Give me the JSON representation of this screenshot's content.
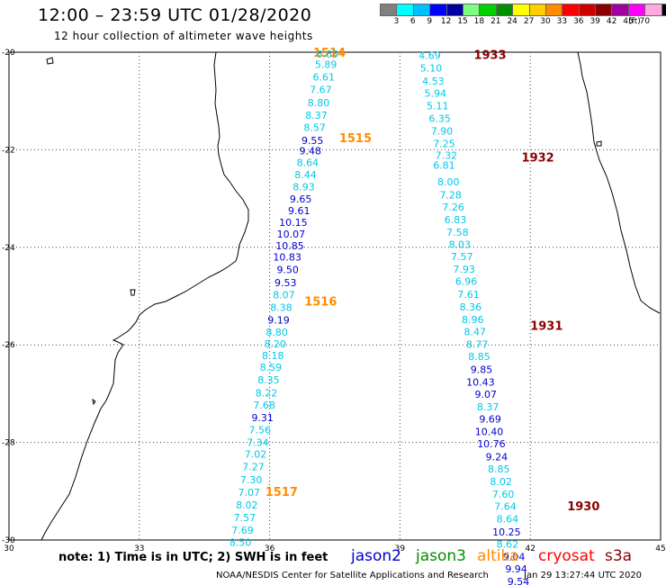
{
  "header": {
    "title": "12:00 – 23:59 UTC 01/28/2020",
    "subtitle": "12 hour collection of altimeter wave heights"
  },
  "legend": {
    "colors": [
      "#808080",
      "#00ffff",
      "#00bfff",
      "#0000ff",
      "#00009f",
      "#7fff7f",
      "#00cf00",
      "#009000",
      "#ffff00",
      "#ffcf00",
      "#ff8c00",
      "#ff0000",
      "#cf0000",
      "#8b0000",
      "#9f009f",
      "#ff00ff",
      "#ffaadd",
      "#000000"
    ],
    "ticks": [
      "3",
      "6",
      "9",
      "12",
      "15",
      "18",
      "21",
      "24",
      "27",
      "30",
      "33",
      "36",
      "39",
      "42",
      "45",
      "70"
    ],
    "unit": "(ft)"
  },
  "map": {
    "lon_ticks": [
      "30",
      "33",
      "36",
      "39",
      "42",
      "45"
    ],
    "lat_ticks": [
      "-20",
      "-22",
      "-24",
      "-26",
      "-28",
      "-30"
    ],
    "colors": {
      "cyan": "#00c8e6",
      "blue": "#0000cd",
      "orange": "#ff8c00",
      "darkred": "#8b0000",
      "coast": "#000000",
      "grid": "#444444"
    },
    "pass_labels": [
      {
        "text": "1514",
        "lon": 37.0,
        "lat": -20.0,
        "color": "orange"
      },
      {
        "text": "1515",
        "lon": 37.6,
        "lat": -21.75,
        "color": "orange"
      },
      {
        "text": "1516",
        "lon": 36.8,
        "lat": -25.1,
        "color": "orange"
      },
      {
        "text": "1517",
        "lon": 35.9,
        "lat": -29.0,
        "color": "orange"
      },
      {
        "text": "1933",
        "lon": 40.7,
        "lat": -20.05,
        "color": "darkred"
      },
      {
        "text": "1932",
        "lon": 41.8,
        "lat": -22.15,
        "color": "darkred"
      },
      {
        "text": "1931",
        "lon": 42.0,
        "lat": -25.6,
        "color": "darkred"
      },
      {
        "text": "1930",
        "lon": 42.85,
        "lat": -29.3,
        "color": "darkred"
      }
    ],
    "track_west": [
      {
        "v": "6.65",
        "lon": 37.58,
        "lat": -20.04,
        "c": "cyan"
      },
      {
        "v": "5.89",
        "lon": 37.55,
        "lat": -20.25,
        "c": "cyan"
      },
      {
        "v": "6.61",
        "lon": 37.5,
        "lat": -20.51,
        "c": "cyan"
      },
      {
        "v": "7.67",
        "lon": 37.43,
        "lat": -20.77,
        "c": "cyan"
      },
      {
        "v": "8.80",
        "lon": 37.38,
        "lat": -21.03,
        "c": "cyan"
      },
      {
        "v": "8.37",
        "lon": 37.33,
        "lat": -21.29,
        "c": "cyan"
      },
      {
        "v": "8.57",
        "lon": 37.29,
        "lat": -21.54,
        "c": "cyan"
      },
      {
        "v": "9.55",
        "lon": 37.24,
        "lat": -21.81,
        "c": "blue"
      },
      {
        "v": "9.48",
        "lon": 37.19,
        "lat": -22.02,
        "c": "blue"
      },
      {
        "v": "8.64",
        "lon": 37.13,
        "lat": -22.26,
        "c": "cyan"
      },
      {
        "v": "8.44",
        "lon": 37.08,
        "lat": -22.51,
        "c": "cyan"
      },
      {
        "v": "8.93",
        "lon": 37.04,
        "lat": -22.76,
        "c": "cyan"
      },
      {
        "v": "9.65",
        "lon": 36.97,
        "lat": -23.01,
        "c": "blue"
      },
      {
        "v": "9.61",
        "lon": 36.93,
        "lat": -23.25,
        "c": "blue"
      },
      {
        "v": "10.15",
        "lon": 36.87,
        "lat": -23.49,
        "c": "blue"
      },
      {
        "v": "10.07",
        "lon": 36.82,
        "lat": -23.73,
        "c": "blue"
      },
      {
        "v": "10.85",
        "lon": 36.79,
        "lat": -23.97,
        "c": "blue"
      },
      {
        "v": "10.83",
        "lon": 36.73,
        "lat": -24.2,
        "c": "blue"
      },
      {
        "v": "9.50",
        "lon": 36.67,
        "lat": -24.46,
        "c": "blue"
      },
      {
        "v": "9.53",
        "lon": 36.62,
        "lat": -24.72,
        "c": "blue"
      },
      {
        "v": "8.07",
        "lon": 36.58,
        "lat": -24.97,
        "c": "cyan"
      },
      {
        "v": "8.38",
        "lon": 36.52,
        "lat": -25.23,
        "c": "cyan"
      },
      {
        "v": "9.19",
        "lon": 36.46,
        "lat": -25.49,
        "c": "blue"
      },
      {
        "v": "8.80",
        "lon": 36.42,
        "lat": -25.74,
        "c": "cyan"
      },
      {
        "v": "8.20",
        "lon": 36.38,
        "lat": -25.98,
        "c": "cyan"
      },
      {
        "v": "8.18",
        "lon": 36.33,
        "lat": -26.22,
        "c": "cyan"
      },
      {
        "v": "8.59",
        "lon": 36.28,
        "lat": -26.46,
        "c": "cyan"
      },
      {
        "v": "8.35",
        "lon": 36.23,
        "lat": -26.72,
        "c": "cyan"
      },
      {
        "v": "8.22",
        "lon": 36.18,
        "lat": -26.98,
        "c": "cyan"
      },
      {
        "v": "7.68",
        "lon": 36.13,
        "lat": -27.23,
        "c": "cyan"
      },
      {
        "v": "9.31",
        "lon": 36.09,
        "lat": -27.49,
        "c": "blue"
      },
      {
        "v": "7.56",
        "lon": 36.03,
        "lat": -27.74,
        "c": "cyan"
      },
      {
        "v": "7.34",
        "lon": 35.98,
        "lat": -28.0,
        "c": "cyan"
      },
      {
        "v": "7.02",
        "lon": 35.93,
        "lat": -28.24,
        "c": "cyan"
      },
      {
        "v": "7.27",
        "lon": 35.88,
        "lat": -28.5,
        "c": "cyan"
      },
      {
        "v": "7.30",
        "lon": 35.83,
        "lat": -28.76,
        "c": "cyan"
      },
      {
        "v": "7.07",
        "lon": 35.78,
        "lat": -29.02,
        "c": "cyan"
      },
      {
        "v": "8.02",
        "lon": 35.73,
        "lat": -29.28,
        "c": "cyan"
      },
      {
        "v": "7.57",
        "lon": 35.68,
        "lat": -29.54,
        "c": "cyan"
      },
      {
        "v": "7.69",
        "lon": 35.63,
        "lat": -29.8,
        "c": "cyan"
      },
      {
        "v": "8.50",
        "lon": 35.58,
        "lat": -30.05,
        "c": "cyan"
      }
    ],
    "track_east": [
      {
        "v": "4.69",
        "lon": 39.94,
        "lat": -20.06,
        "c": "cyan"
      },
      {
        "v": "5.10",
        "lon": 39.97,
        "lat": -20.32,
        "c": "cyan"
      },
      {
        "v": "4.53",
        "lon": 40.02,
        "lat": -20.59,
        "c": "cyan"
      },
      {
        "v": "5.94",
        "lon": 40.07,
        "lat": -20.84,
        "c": "cyan"
      },
      {
        "v": "5.11",
        "lon": 40.12,
        "lat": -21.1,
        "c": "cyan"
      },
      {
        "v": "6.35",
        "lon": 40.17,
        "lat": -21.36,
        "c": "cyan"
      },
      {
        "v": "7.90",
        "lon": 40.22,
        "lat": -21.61,
        "c": "cyan"
      },
      {
        "v": "7.25",
        "lon": 40.27,
        "lat": -21.87,
        "c": "cyan"
      },
      {
        "v": "7.32",
        "lon": 40.32,
        "lat": -22.11,
        "c": "cyan"
      },
      {
        "v": "6.81",
        "lon": 40.27,
        "lat": -22.32,
        "c": "cyan"
      },
      {
        "v": "8.00",
        "lon": 40.37,
        "lat": -22.66,
        "c": "cyan"
      },
      {
        "v": "7.28",
        "lon": 40.42,
        "lat": -22.92,
        "c": "cyan"
      },
      {
        "v": "7.26",
        "lon": 40.48,
        "lat": -23.17,
        "c": "cyan"
      },
      {
        "v": "6.83",
        "lon": 40.53,
        "lat": -23.43,
        "c": "cyan"
      },
      {
        "v": "7.58",
        "lon": 40.58,
        "lat": -23.69,
        "c": "cyan"
      },
      {
        "v": "8.03",
        "lon": 40.63,
        "lat": -23.94,
        "c": "cyan"
      },
      {
        "v": "7.57",
        "lon": 40.68,
        "lat": -24.19,
        "c": "cyan"
      },
      {
        "v": "7.93",
        "lon": 40.73,
        "lat": -24.45,
        "c": "cyan"
      },
      {
        "v": "6.96",
        "lon": 40.78,
        "lat": -24.7,
        "c": "cyan"
      },
      {
        "v": "7.61",
        "lon": 40.83,
        "lat": -24.96,
        "c": "cyan"
      },
      {
        "v": "8.36",
        "lon": 40.88,
        "lat": -25.22,
        "c": "cyan"
      },
      {
        "v": "8.96",
        "lon": 40.93,
        "lat": -25.48,
        "c": "cyan"
      },
      {
        "v": "8.47",
        "lon": 40.98,
        "lat": -25.73,
        "c": "cyan"
      },
      {
        "v": "8.77",
        "lon": 41.03,
        "lat": -25.99,
        "c": "cyan"
      },
      {
        "v": "8.85",
        "lon": 41.08,
        "lat": -26.24,
        "c": "cyan"
      },
      {
        "v": "9.85",
        "lon": 41.13,
        "lat": -26.5,
        "c": "blue"
      },
      {
        "v": "10.43",
        "lon": 41.18,
        "lat": -26.76,
        "c": "blue"
      },
      {
        "v": "9.07",
        "lon": 41.23,
        "lat": -27.01,
        "c": "blue"
      },
      {
        "v": "8.37",
        "lon": 41.28,
        "lat": -27.27,
        "c": "cyan"
      },
      {
        "v": "9.69",
        "lon": 41.33,
        "lat": -27.52,
        "c": "blue"
      },
      {
        "v": "10.40",
        "lon": 41.38,
        "lat": -27.78,
        "c": "blue"
      },
      {
        "v": "10.76",
        "lon": 41.43,
        "lat": -28.03,
        "c": "blue"
      },
      {
        "v": "9.24",
        "lon": 41.48,
        "lat": -28.29,
        "c": "blue"
      },
      {
        "v": "8.85",
        "lon": 41.53,
        "lat": -28.54,
        "c": "cyan"
      },
      {
        "v": "8.02",
        "lon": 41.58,
        "lat": -28.8,
        "c": "cyan"
      },
      {
        "v": "7.60",
        "lon": 41.63,
        "lat": -29.06,
        "c": "cyan"
      },
      {
        "v": "7.64",
        "lon": 41.68,
        "lat": -29.31,
        "c": "cyan"
      },
      {
        "v": "8.64",
        "lon": 41.73,
        "lat": -29.57,
        "c": "cyan"
      },
      {
        "v": "10.25",
        "lon": 41.78,
        "lat": -29.83,
        "c": "blue"
      },
      {
        "v": "8.62",
        "lon": 41.73,
        "lat": -30.08,
        "c": "cyan"
      },
      {
        "v": "9.04",
        "lon": 41.88,
        "lat": -30.34,
        "c": "blue"
      },
      {
        "v": "9.94",
        "lon": 41.93,
        "lat": -30.59,
        "c": "blue"
      },
      {
        "v": "9.54",
        "lon": 41.98,
        "lat": -30.85,
        "c": "blue"
      }
    ]
  },
  "footer": {
    "note": "note: 1) Time is in UTC; 2) SWH is in feet",
    "sat_jason2": "jason2",
    "sat_jason3": "jason3",
    "sat_altika": "altika",
    "sat_cryosat": "cryosat",
    "sat_s3a": "s3a",
    "sat_colors": {
      "jason2": "#0000cd",
      "jason3": "#009000",
      "altika": "#ff8c00",
      "cryosat": "#ff0000",
      "s3a": "#8b0000"
    },
    "credit": "NOAA/NESDIS Center for Satellite Applications and Research",
    "timestamp": "Jan 29 13:27:44 UTC 2020"
  }
}
